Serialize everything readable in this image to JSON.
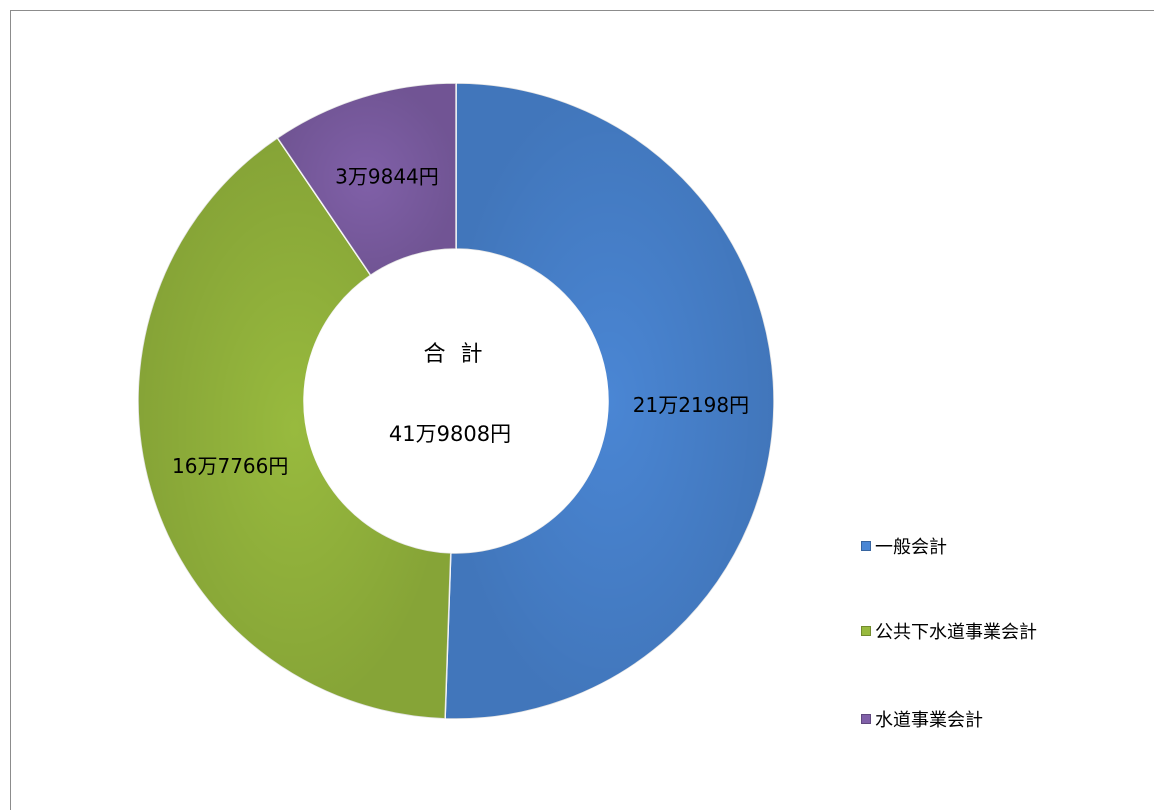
{
  "chart_data": {
    "type": "pie",
    "variant": "doughnut",
    "center": {
      "title": "合 計",
      "total_label": "41万9808円",
      "total_value": 419808
    },
    "series": [
      {
        "name": "一般会計",
        "value": 212198,
        "label": "21万2198円",
        "color": "#4a86d4"
      },
      {
        "name": "公共下水道事業会計",
        "value": 167766,
        "label": "16万7766円",
        "color": "#98ba3e"
      },
      {
        "name": "水道事業会計",
        "value": 39844,
        "label": "3万9844円",
        "color": "#8060a8"
      }
    ],
    "legend": {
      "placement": "bottom-right",
      "entries": [
        "一般会計",
        "公共下水道事業会計",
        "水道事業会計"
      ]
    }
  }
}
